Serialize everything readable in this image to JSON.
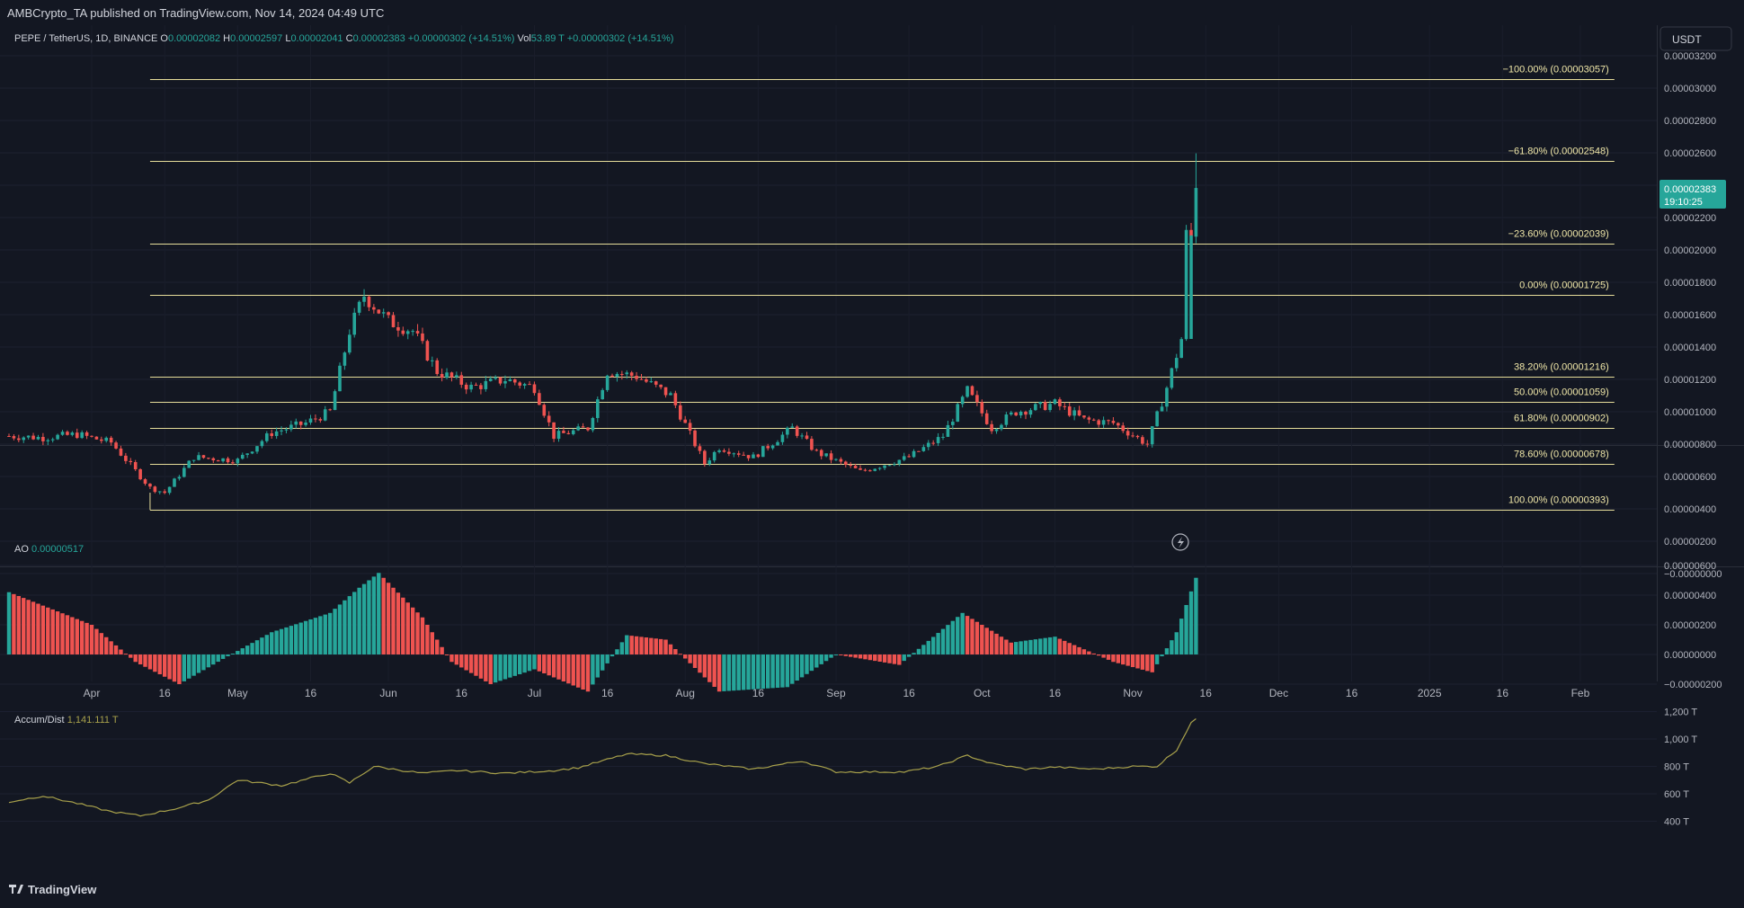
{
  "header": {
    "publisher_line": "AMBCrypto_TA published on TradingView.com, Nov 14, 2024 04:49 UTC",
    "currency_button": "USDT",
    "footer_logo": "TradingView"
  },
  "legend": {
    "symbol": "PEPE / TetherUS, 1D, BINANCE",
    "o_label": "O",
    "open": "0.00002082",
    "h_label": "H",
    "high": "0.00002597",
    "l_label": "L",
    "low": "0.00002041",
    "c_label": "C",
    "close": "0.00002383",
    "change": "+0.00000302 (+14.51%)",
    "vol_label": "Vol",
    "vol": "53.89 T",
    "vol_change": "+0.00000302 (+14.51%)"
  },
  "price_tag": {
    "value": "0.00002383",
    "countdown": "19:10:25"
  },
  "colors": {
    "background": "#131722",
    "up": "#26a69a",
    "down": "#ef5350",
    "fib_line": "#e6dd9a",
    "fib_text": "#f0e7a8",
    "accum_line": "#a8a14b",
    "text": "#d1d4dc",
    "axis_text": "#b2b5be",
    "price_tag": "#26a69a"
  },
  "chart_data": [
    {
      "type": "candlestick",
      "title": "PEPE / TetherUS, 1D, BINANCE",
      "x_ticks": [
        "Apr",
        "16",
        "May",
        "16",
        "Jun",
        "16",
        "Jul",
        "16",
        "Aug",
        "16",
        "Sep",
        "16",
        "Oct",
        "16",
        "Nov",
        "16",
        "Dec",
        "16",
        "2025",
        "16",
        "Feb"
      ],
      "y_ticks": [
        "0.00003200",
        "0.00003000",
        "0.00002800",
        "0.00002600",
        "0.00002400",
        "0.00002200",
        "0.00002000",
        "0.00001800",
        "0.00001600",
        "0.00001400",
        "0.00001200",
        "0.00001000",
        "0.00000800",
        "0.00000600",
        "0.00000400",
        "0.00000200",
        "−0.00000000"
      ],
      "ylim": [
        -2e-07,
        3.35e-05
      ],
      "date_range": [
        "2024-03-15",
        "2024-11-14"
      ],
      "close_series": [
        {
          "date": "2024-03-15",
          "value": 8.5e-06
        },
        {
          "date": "2024-03-22",
          "value": 8.4e-06
        },
        {
          "date": "2024-03-29",
          "value": 8.6e-06
        },
        {
          "date": "2024-04-05",
          "value": 8.1e-06
        },
        {
          "date": "2024-04-13",
          "value": 5.3e-06
        },
        {
          "date": "2024-04-16",
          "value": 5e-06
        },
        {
          "date": "2024-04-22",
          "value": 7.2e-06
        },
        {
          "date": "2024-05-01",
          "value": 7e-06
        },
        {
          "date": "2024-05-08",
          "value": 8.7e-06
        },
        {
          "date": "2024-05-15",
          "value": 9.3e-06
        },
        {
          "date": "2024-05-20",
          "value": 1e-05
        },
        {
          "date": "2024-05-24",
          "value": 1.5e-05
        },
        {
          "date": "2024-05-27",
          "value": 1.72e-05
        },
        {
          "date": "2024-06-01",
          "value": 1.56e-05
        },
        {
          "date": "2024-06-06",
          "value": 1.5e-05
        },
        {
          "date": "2024-06-11",
          "value": 1.25e-05
        },
        {
          "date": "2024-06-18",
          "value": 1.15e-05
        },
        {
          "date": "2024-06-25",
          "value": 1.2e-05
        },
        {
          "date": "2024-07-01",
          "value": 1.15e-05
        },
        {
          "date": "2024-07-05",
          "value": 8.5e-06
        },
        {
          "date": "2024-07-12",
          "value": 9e-06
        },
        {
          "date": "2024-07-16",
          "value": 1.25e-05
        },
        {
          "date": "2024-07-22",
          "value": 1.22e-05
        },
        {
          "date": "2024-07-29",
          "value": 1.1e-05
        },
        {
          "date": "2024-08-05",
          "value": 6.8e-06
        },
        {
          "date": "2024-08-08",
          "value": 7.8e-06
        },
        {
          "date": "2024-08-15",
          "value": 7.2e-06
        },
        {
          "date": "2024-08-23",
          "value": 9e-06
        },
        {
          "date": "2024-08-28",
          "value": 7.5e-06
        },
        {
          "date": "2024-09-06",
          "value": 6.3e-06
        },
        {
          "date": "2024-09-16",
          "value": 7.2e-06
        },
        {
          "date": "2024-09-23",
          "value": 8.5e-06
        },
        {
          "date": "2024-09-28",
          "value": 1.13e-05
        },
        {
          "date": "2024-10-03",
          "value": 9e-06
        },
        {
          "date": "2024-10-08",
          "value": 1e-05
        },
        {
          "date": "2024-10-16",
          "value": 1.05e-05
        },
        {
          "date": "2024-10-22",
          "value": 9.5e-06
        },
        {
          "date": "2024-10-28",
          "value": 9.3e-06
        },
        {
          "date": "2024-11-04",
          "value": 8e-06
        },
        {
          "date": "2024-11-08",
          "value": 1.15e-05
        },
        {
          "date": "2024-11-11",
          "value": 1.45e-05
        },
        {
          "date": "2024-11-12",
          "value": 2.09e-05
        },
        {
          "date": "2024-11-13",
          "value": 2.08e-05
        },
        {
          "date": "2024-11-14",
          "value": 2.383e-05
        }
      ],
      "last_candle": {
        "date": "2024-11-14",
        "open": 2.082e-05,
        "high": 2.597e-05,
        "low": 2.041e-05,
        "close": 2.383e-05
      },
      "fib_levels": [
        {
          "label": "−100.00% (0.00003057)",
          "value": 3.057e-05
        },
        {
          "label": "−61.80% (0.00002548)",
          "value": 2.548e-05
        },
        {
          "label": "−23.60% (0.00002039)",
          "value": 2.039e-05
        },
        {
          "label": "0.00% (0.00001725)",
          "value": 1.725e-05
        },
        {
          "label": "38.20% (0.00001216)",
          "value": 1.216e-05
        },
        {
          "label": "50.00% (0.00001059)",
          "value": 1.059e-05
        },
        {
          "label": "61.80% (0.00000902)",
          "value": 9.02e-06
        },
        {
          "label": "78.60% (0.00000678)",
          "value": 6.78e-06
        },
        {
          "label": "100.00% (0.00000393)",
          "value": 3.93e-06
        }
      ],
      "fib_start_date": "2024-04-13",
      "fib_end_date": "2025-02-08"
    },
    {
      "type": "bar",
      "title": "AO",
      "current": "0.00000517",
      "y_ticks": [
        "0.00000600",
        "0.00000400",
        "0.00000200",
        "0.00000000",
        "−0.00000200"
      ],
      "ylim": [
        -3.4e-06,
        6.4e-06
      ],
      "series": [
        {
          "date": "2024-03-15",
          "value": 4.2e-06
        },
        {
          "date": "2024-04-01",
          "value": 2e-06
        },
        {
          "date": "2024-04-10",
          "value": -5e-07
        },
        {
          "date": "2024-04-19",
          "value": -2e-06
        },
        {
          "date": "2024-04-28",
          "value": -3e-07
        },
        {
          "date": "2024-05-08",
          "value": 1.5e-06
        },
        {
          "date": "2024-05-20",
          "value": 2.8e-06
        },
        {
          "date": "2024-05-26",
          "value": 4.5e-06
        },
        {
          "date": "2024-05-30",
          "value": 5.5e-06
        },
        {
          "date": "2024-06-08",
          "value": 2.5e-06
        },
        {
          "date": "2024-06-14",
          "value": -5e-07
        },
        {
          "date": "2024-06-22",
          "value": -2e-06
        },
        {
          "date": "2024-07-01",
          "value": -1e-06
        },
        {
          "date": "2024-07-12",
          "value": -2.5e-06
        },
        {
          "date": "2024-07-20",
          "value": 1.3e-06
        },
        {
          "date": "2024-07-28",
          "value": 1e-06
        },
        {
          "date": "2024-08-08",
          "value": -2.5e-06
        },
        {
          "date": "2024-08-22",
          "value": -2.2e-06
        },
        {
          "date": "2024-09-01",
          "value": 0.0
        },
        {
          "date": "2024-09-14",
          "value": -7e-07
        },
        {
          "date": "2024-09-27",
          "value": 2.8e-06
        },
        {
          "date": "2024-10-07",
          "value": 8e-07
        },
        {
          "date": "2024-10-16",
          "value": 1.2e-06
        },
        {
          "date": "2024-10-28",
          "value": -5e-07
        },
        {
          "date": "2024-11-05",
          "value": -1.2e-06
        },
        {
          "date": "2024-11-10",
          "value": 1.5e-06
        },
        {
          "date": "2024-11-14",
          "value": 5.17e-06
        }
      ]
    },
    {
      "type": "line",
      "title": "Accum/Dist",
      "current": "1,141.111 T",
      "y_ticks": [
        "1,200 T",
        "1,000 T",
        "800 T",
        "600 T",
        "400 T"
      ],
      "ylim": [
        365,
        1240
      ],
      "unit": "T",
      "series": [
        {
          "date": "2024-03-15",
          "value": 540
        },
        {
          "date": "2024-03-22",
          "value": 585
        },
        {
          "date": "2024-03-29",
          "value": 530
        },
        {
          "date": "2024-04-05",
          "value": 470
        },
        {
          "date": "2024-04-11",
          "value": 440
        },
        {
          "date": "2024-04-18",
          "value": 490
        },
        {
          "date": "2024-04-25",
          "value": 555
        },
        {
          "date": "2024-05-01",
          "value": 700
        },
        {
          "date": "2024-05-10",
          "value": 660
        },
        {
          "date": "2024-05-20",
          "value": 750
        },
        {
          "date": "2024-05-24",
          "value": 680
        },
        {
          "date": "2024-05-29",
          "value": 800
        },
        {
          "date": "2024-06-08",
          "value": 750
        },
        {
          "date": "2024-06-15",
          "value": 770
        },
        {
          "date": "2024-06-25",
          "value": 750
        },
        {
          "date": "2024-07-05",
          "value": 770
        },
        {
          "date": "2024-07-10",
          "value": 790
        },
        {
          "date": "2024-07-20",
          "value": 890
        },
        {
          "date": "2024-07-28",
          "value": 880
        },
        {
          "date": "2024-08-05",
          "value": 820
        },
        {
          "date": "2024-08-15",
          "value": 780
        },
        {
          "date": "2024-08-25",
          "value": 840
        },
        {
          "date": "2024-09-01",
          "value": 760
        },
        {
          "date": "2024-09-15",
          "value": 760
        },
        {
          "date": "2024-09-22",
          "value": 800
        },
        {
          "date": "2024-09-28",
          "value": 880
        },
        {
          "date": "2024-10-03",
          "value": 820
        },
        {
          "date": "2024-10-10",
          "value": 780
        },
        {
          "date": "2024-10-16",
          "value": 795
        },
        {
          "date": "2024-10-24",
          "value": 780
        },
        {
          "date": "2024-11-01",
          "value": 800
        },
        {
          "date": "2024-11-06",
          "value": 800
        },
        {
          "date": "2024-11-10",
          "value": 920
        },
        {
          "date": "2024-11-13",
          "value": 1120
        },
        {
          "date": "2024-11-14",
          "value": 1141.111
        }
      ]
    }
  ]
}
